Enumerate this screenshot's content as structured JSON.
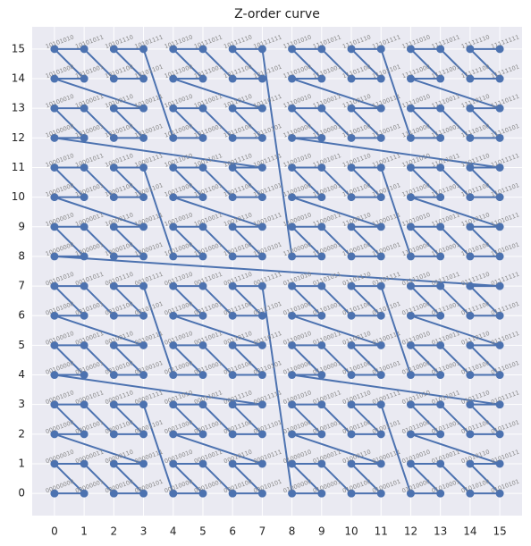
{
  "chart_data": {
    "type": "line",
    "title": "Z-order curve",
    "x": [
      0,
      1,
      0,
      1,
      2,
      3,
      2,
      3,
      0,
      1,
      0,
      1,
      2,
      3,
      2,
      3,
      4,
      5,
      4,
      5,
      6,
      7,
      6,
      7,
      4,
      5,
      4,
      5,
      6,
      7,
      6,
      7,
      0,
      1,
      0,
      1,
      2,
      3,
      2,
      3,
      0,
      1,
      0,
      1,
      2,
      3,
      2,
      3,
      4,
      5,
      4,
      5,
      6,
      7,
      6,
      7,
      4,
      5,
      4,
      5,
      6,
      7,
      6,
      7,
      8,
      9,
      8,
      9,
      10,
      11,
      10,
      11,
      8,
      9,
      8,
      9,
      10,
      11,
      10,
      11,
      12,
      13,
      12,
      13,
      14,
      15,
      14,
      15,
      12,
      13,
      12,
      13,
      14,
      15,
      14,
      15,
      8,
      9,
      8,
      9,
      10,
      11,
      10,
      11,
      8,
      9,
      8,
      9,
      10,
      11,
      10,
      11,
      12,
      13,
      12,
      13,
      14,
      15,
      14,
      15,
      12,
      13,
      12,
      13,
      14,
      15,
      14,
      15,
      0,
      1,
      0,
      1,
      2,
      3,
      2,
      3,
      0,
      1,
      0,
      1,
      2,
      3,
      2,
      3,
      4,
      5,
      4,
      5,
      6,
      7,
      6,
      7,
      4,
      5,
      4,
      5,
      6,
      7,
      6,
      7,
      0,
      1,
      0,
      1,
      2,
      3,
      2,
      3,
      0,
      1,
      0,
      1,
      2,
      3,
      2,
      3,
      4,
      5,
      4,
      5,
      6,
      7,
      6,
      7,
      4,
      5,
      4,
      5,
      6,
      7,
      6,
      7,
      8,
      9,
      8,
      9,
      10,
      11,
      10,
      11,
      8,
      9,
      8,
      9,
      10,
      11,
      10,
      11,
      12,
      13,
      12,
      13,
      14,
      15,
      14,
      15,
      12,
      13,
      12,
      13,
      14,
      15,
      14,
      15,
      8,
      9,
      8,
      9,
      10,
      11,
      10,
      11,
      8,
      9,
      8,
      9,
      10,
      11,
      10,
      11,
      12,
      13,
      12,
      13,
      14,
      15,
      14,
      15,
      12,
      13,
      12,
      13,
      14,
      15,
      14,
      15
    ],
    "series": [
      {
        "color": "#4c72b0",
        "values": [
          0,
          0,
          1,
          1,
          0,
          0,
          1,
          1,
          2,
          2,
          3,
          3,
          2,
          2,
          3,
          3,
          0,
          0,
          1,
          1,
          0,
          0,
          1,
          1,
          2,
          2,
          3,
          3,
          2,
          2,
          3,
          3,
          4,
          4,
          5,
          5,
          4,
          4,
          5,
          5,
          6,
          6,
          7,
          7,
          6,
          6,
          7,
          7,
          4,
          4,
          5,
          5,
          4,
          4,
          5,
          5,
          6,
          6,
          7,
          7,
          6,
          6,
          7,
          7,
          0,
          0,
          1,
          1,
          0,
          0,
          1,
          1,
          2,
          2,
          3,
          3,
          2,
          2,
          3,
          3,
          0,
          0,
          1,
          1,
          0,
          0,
          1,
          1,
          2,
          2,
          3,
          3,
          2,
          2,
          3,
          3,
          4,
          4,
          5,
          5,
          4,
          4,
          5,
          5,
          6,
          6,
          7,
          7,
          6,
          6,
          7,
          7,
          4,
          4,
          5,
          5,
          4,
          4,
          5,
          5,
          6,
          6,
          7,
          7,
          6,
          6,
          7,
          7,
          8,
          8,
          9,
          9,
          8,
          8,
          9,
          9,
          10,
          10,
          11,
          11,
          10,
          10,
          11,
          11,
          8,
          8,
          9,
          9,
          8,
          8,
          9,
          9,
          10,
          10,
          11,
          11,
          10,
          10,
          11,
          11,
          12,
          12,
          13,
          13,
          12,
          12,
          13,
          13,
          14,
          14,
          15,
          15,
          14,
          14,
          15,
          15,
          12,
          12,
          13,
          13,
          12,
          12,
          13,
          13,
          14,
          14,
          15,
          15,
          14,
          14,
          15,
          15,
          8,
          8,
          9,
          9,
          8,
          8,
          9,
          9,
          10,
          10,
          11,
          11,
          10,
          10,
          11,
          11,
          8,
          8,
          9,
          9,
          8,
          8,
          9,
          9,
          10,
          10,
          11,
          11,
          10,
          10,
          11,
          11,
          12,
          12,
          13,
          13,
          12,
          12,
          13,
          13,
          14,
          14,
          15,
          15,
          14,
          14,
          15,
          15,
          12,
          12,
          13,
          13,
          12,
          12,
          13,
          13,
          14,
          14,
          15,
          15,
          14,
          14,
          15,
          15
        ]
      }
    ],
    "point_labels": [
      "00000000",
      "00000001",
      "00000010",
      "00000011",
      "00000100",
      "00000101",
      "00000110",
      "00000111",
      "00001000",
      "00001001",
      "00001010",
      "00001011",
      "00001100",
      "00001101",
      "00001110",
      "00001111",
      "00010000",
      "00010001",
      "00010010",
      "00010011",
      "00010100",
      "00010101",
      "00010110",
      "00010111",
      "00011000",
      "00011001",
      "00011010",
      "00011011",
      "00011100",
      "00011101",
      "00011110",
      "00011111",
      "00100000",
      "00100001",
      "00100010",
      "00100011",
      "00100100",
      "00100101",
      "00100110",
      "00100111",
      "00101000",
      "00101001",
      "00101010",
      "00101011",
      "00101100",
      "00101101",
      "00101110",
      "00101111",
      "00110000",
      "00110001",
      "00110010",
      "00110011",
      "00110100",
      "00110101",
      "00110110",
      "00110111",
      "00111000",
      "00111001",
      "00111010",
      "00111011",
      "00111100",
      "00111101",
      "00111110",
      "00111111",
      "01000000",
      "01000001",
      "01000010",
      "01000011",
      "01000100",
      "01000101",
      "01000110",
      "01000111",
      "01001000",
      "01001001",
      "01001010",
      "01001011",
      "01001100",
      "01001101",
      "01001110",
      "01001111",
      "01010000",
      "01010001",
      "01010010",
      "01010011",
      "01010100",
      "01010101",
      "01010110",
      "01010111",
      "01011000",
      "01011001",
      "01011010",
      "01011011",
      "01011100",
      "01011101",
      "01011110",
      "01011111",
      "01100000",
      "01100001",
      "01100010",
      "01100011",
      "01100100",
      "01100101",
      "01100110",
      "01100111",
      "01101000",
      "01101001",
      "01101010",
      "01101011",
      "01101100",
      "01101101",
      "01101110",
      "01101111",
      "01110000",
      "01110001",
      "01110010",
      "01110011",
      "01110100",
      "01110101",
      "01110110",
      "01110111",
      "01111000",
      "01111001",
      "01111010",
      "01111011",
      "01111100",
      "01111101",
      "01111110",
      "01111111",
      "10000000",
      "10000001",
      "10000010",
      "10000011",
      "10000100",
      "10000101",
      "10000110",
      "10000111",
      "10001000",
      "10001001",
      "10001010",
      "10001011",
      "10001100",
      "10001101",
      "10001110",
      "10001111",
      "10010000",
      "10010001",
      "10010010",
      "10010011",
      "10010100",
      "10010101",
      "10010110",
      "10010111",
      "10011000",
      "10011001",
      "10011010",
      "10011011",
      "10011100",
      "10011101",
      "10011110",
      "10011111",
      "10100000",
      "10100001",
      "10100010",
      "10100011",
      "10100100",
      "10100101",
      "10100110",
      "10100111",
      "10101000",
      "10101001",
      "10101010",
      "10101011",
      "10101100",
      "10101101",
      "10101110",
      "10101111",
      "10110000",
      "10110001",
      "10110010",
      "10110011",
      "10110100",
      "10110101",
      "10110110",
      "10110111",
      "10111000",
      "10111001",
      "10111010",
      "10111011",
      "10111100",
      "10111101",
      "10111110",
      "10111111",
      "11000000",
      "11000001",
      "11000010",
      "11000011",
      "11000100",
      "11000101",
      "11000110",
      "11000111",
      "11001000",
      "11001001",
      "11001010",
      "11001011",
      "11001100",
      "11001101",
      "11001110",
      "11001111",
      "11010000",
      "11010001",
      "11010010",
      "11010011",
      "11010100",
      "11010101",
      "11010110",
      "11010111",
      "11011000",
      "11011001",
      "11011010",
      "11011011",
      "11011100",
      "11011101",
      "11011110",
      "11011111",
      "11100000",
      "11100001",
      "11100010",
      "11100011",
      "11100100",
      "11100101",
      "11100110",
      "11100111",
      "11101000",
      "11101001",
      "11101010",
      "11101011",
      "11101100",
      "11101101",
      "11101110",
      "11101111",
      "11110000",
      "11110001",
      "11110010",
      "11110011",
      "11110100",
      "11110101",
      "11110110",
      "11110111",
      "11111000",
      "11111001",
      "11111010",
      "11111011",
      "11111100",
      "11111101",
      "11111110",
      "11111111"
    ],
    "xlim": [
      -0.75,
      15.75
    ],
    "ylim": [
      -0.75,
      15.75
    ],
    "xticks": [
      0,
      1,
      2,
      3,
      4,
      5,
      6,
      7,
      8,
      9,
      10,
      11,
      12,
      13,
      14,
      15
    ],
    "yticks": [
      0,
      1,
      2,
      3,
      4,
      5,
      6,
      7,
      8,
      9,
      10,
      11,
      12,
      13,
      14,
      15
    ],
    "grid": true
  }
}
